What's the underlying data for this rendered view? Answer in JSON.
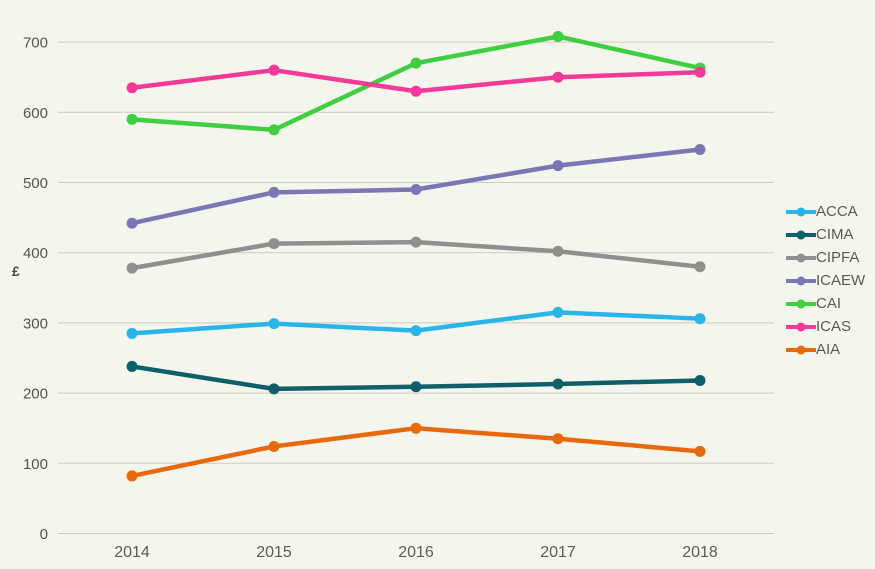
{
  "colors": {
    "background": "#f4f6ed",
    "gridline": "#cbccc6"
  },
  "chart_data": {
    "type": "line",
    "title": "",
    "xlabel": "",
    "ylabel": "£",
    "categories": [
      "2014",
      "2015",
      "2016",
      "2017",
      "2018"
    ],
    "y_ticks": [
      0,
      100,
      200,
      300,
      400,
      500,
      600,
      700
    ],
    "ylim": [
      0,
      760
    ],
    "grid": true,
    "legend_position": "right",
    "series": [
      {
        "name": "ACCA",
        "color": "#29b5e8",
        "values": [
          285,
          299,
          289,
          315,
          306
        ]
      },
      {
        "name": "CIMA",
        "color": "#0e5f6a",
        "values": [
          238,
          206,
          209,
          213,
          218
        ]
      },
      {
        "name": "CIPFA",
        "color": "#8f8f8f",
        "values": [
          378,
          413,
          415,
          402,
          380
        ]
      },
      {
        "name": "ICAEW",
        "color": "#7b77b5",
        "values": [
          442,
          486,
          490,
          524,
          547
        ]
      },
      {
        "name": "CAI",
        "color": "#3fce3f",
        "values": [
          590,
          575,
          670,
          708,
          663
        ]
      },
      {
        "name": "ICAS",
        "color": "#f33a98",
        "values": [
          635,
          660,
          630,
          650,
          657
        ]
      },
      {
        "name": "AIA",
        "color": "#e8680e",
        "values": [
          82,
          124,
          150,
          135,
          117
        ]
      }
    ]
  }
}
